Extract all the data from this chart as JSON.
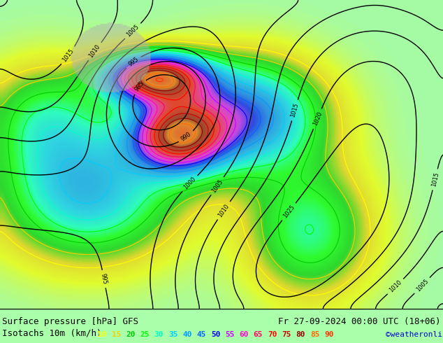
{
  "title_left": "Surface pressure [hPa] GFS",
  "title_right": "Fr 27-09-2024 00:00 UTC (18+06)",
  "subtitle_left": "Isotachs 10m (km/h)",
  "copyright": "©weatheronline.co.uk",
  "legend_values": [
    10,
    15,
    20,
    25,
    30,
    35,
    40,
    45,
    50,
    55,
    60,
    65,
    70,
    75,
    80,
    85,
    90
  ],
  "legend_colors": [
    "#ffff00",
    "#ffcc00",
    "#00cc00",
    "#00ff00",
    "#00ffcc",
    "#00ccff",
    "#0099ff",
    "#0066ff",
    "#0000ff",
    "#cc00ff",
    "#ff00cc",
    "#ff0066",
    "#ff0000",
    "#cc0000",
    "#990000",
    "#ff6600",
    "#ff3300"
  ],
  "bg_color": "#aaffaa",
  "map_bg_light": "#ccffcc",
  "bottom_bar_color": "#000000",
  "text_color_left": "#000000",
  "text_color_right": "#000000",
  "copyright_color": "#0000cc",
  "title_fontsize": 9,
  "subtitle_fontsize": 9,
  "legend_fontsize": 8,
  "figwidth": 6.34,
  "figheight": 4.9,
  "dpi": 100
}
